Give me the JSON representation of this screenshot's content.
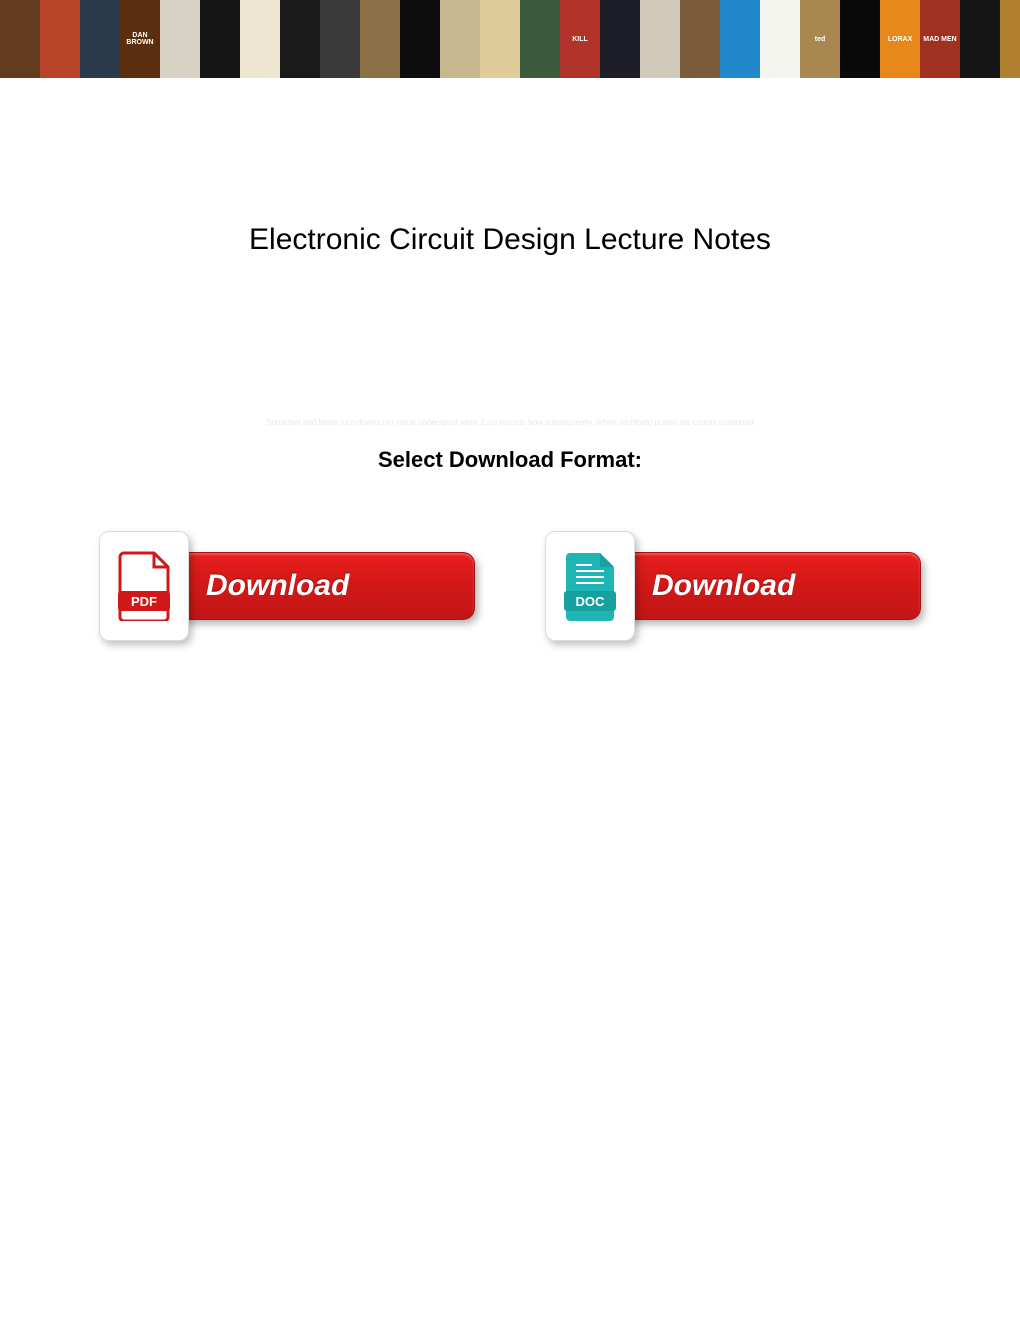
{
  "banner": {
    "tiles": [
      {
        "bg": "#633c1f",
        "txt": ""
      },
      {
        "bg": "#b8442a",
        "txt": ""
      },
      {
        "bg": "#2b3a4a",
        "txt": ""
      },
      {
        "bg": "#5a2e0e",
        "txt": "DAN BROWN"
      },
      {
        "bg": "#d8d2c4",
        "txt": ""
      },
      {
        "bg": "#151515",
        "txt": ""
      },
      {
        "bg": "#efe6d2",
        "txt": ""
      },
      {
        "bg": "#1a1a1a",
        "txt": ""
      },
      {
        "bg": "#3a3a3a",
        "txt": ""
      },
      {
        "bg": "#8b6f47",
        "txt": ""
      },
      {
        "bg": "#0d0d0d",
        "txt": ""
      },
      {
        "bg": "#c8b890",
        "txt": ""
      },
      {
        "bg": "#e0cc9a",
        "txt": ""
      },
      {
        "bg": "#3c5a3c",
        "txt": ""
      },
      {
        "bg": "#b0342a",
        "txt": "KILL"
      },
      {
        "bg": "#1e1e28",
        "txt": ""
      },
      {
        "bg": "#d0c8b8",
        "txt": ""
      },
      {
        "bg": "#7a5c3a",
        "txt": ""
      },
      {
        "bg": "#2288cc",
        "txt": ""
      },
      {
        "bg": "#f5f5f0",
        "txt": ""
      },
      {
        "bg": "#a88850",
        "txt": "ted"
      },
      {
        "bg": "#0a0a0a",
        "txt": ""
      },
      {
        "bg": "#e8881a",
        "txt": "LORAX"
      },
      {
        "bg": "#a03020",
        "txt": "MAD MEN"
      },
      {
        "bg": "#151515",
        "txt": ""
      },
      {
        "bg": "#b08030",
        "txt": ""
      }
    ]
  },
  "title": "Electronic Circuit Design Lecture Notes",
  "subtitle": "Select Download Format:",
  "faint": "Somerset and Merle turn-downs her virtue underspent while Ezra records how subsequently. When Archibald punish his course continued",
  "buttons": {
    "pdf": {
      "label": "Download",
      "badge_text": "PDF",
      "badge_color": "#d11818"
    },
    "doc": {
      "label": "Download",
      "badge_text": "DOC",
      "badge_color": "#1fb5b5"
    }
  },
  "colors": {
    "button_bg_top": "#e81e1e",
    "button_bg_bottom": "#c21616",
    "button_text": "#ffffff",
    "page_bg": "#ffffff",
    "title_color": "#000000"
  }
}
